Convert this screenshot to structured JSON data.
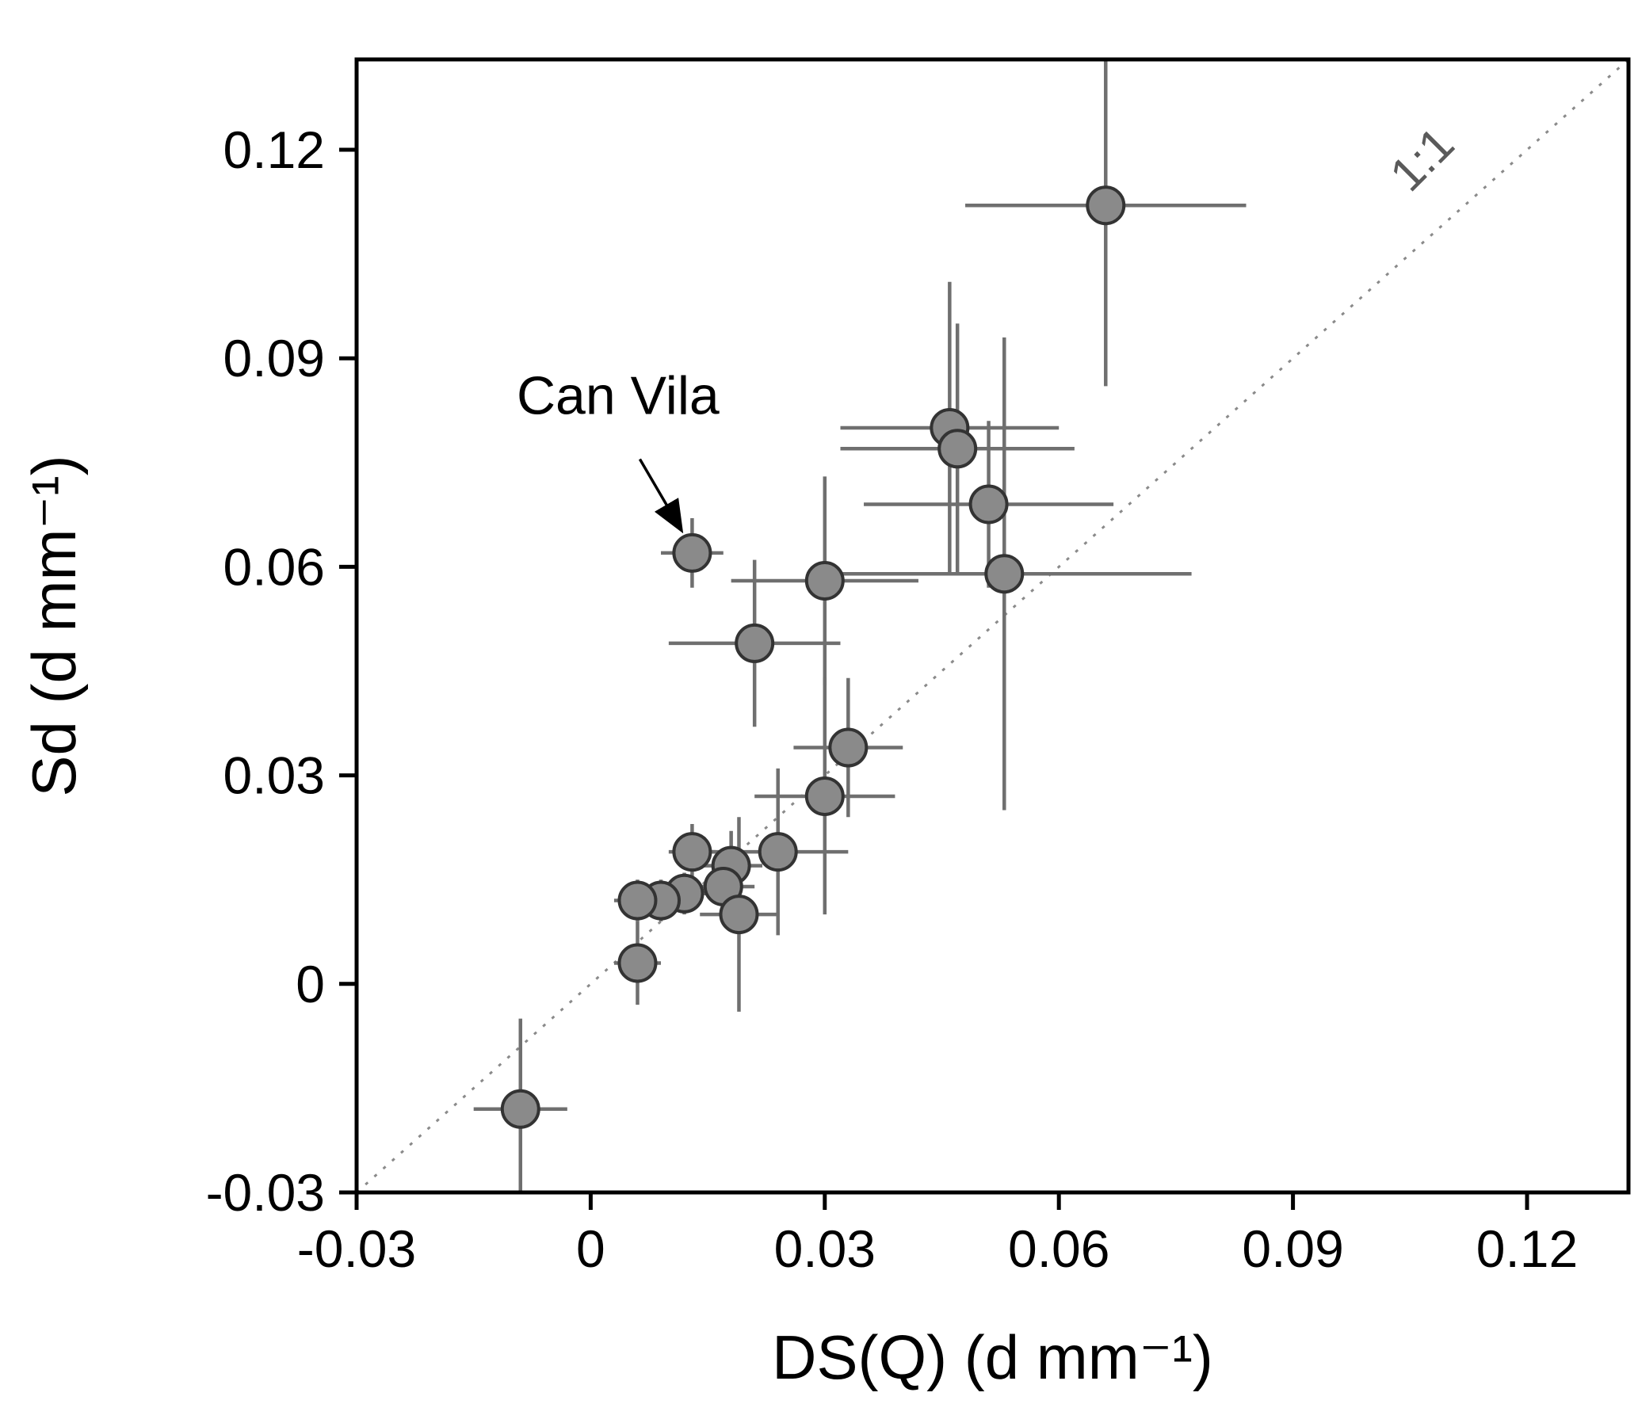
{
  "figure": {
    "description": "Scatter plot comparing Sd versus DS(Q) with 1:1 reference line"
  },
  "chart_data": {
    "type": "scatter",
    "title": "",
    "xlabel": "DS(Q)  (d mm⁻¹)",
    "ylabel": "Sd (d mm⁻¹)",
    "xlim": [
      -0.03,
      0.133
    ],
    "ylim": [
      -0.03,
      0.133
    ],
    "grid": false,
    "legend": "none",
    "xticks": {
      "values": [
        -0.03,
        0,
        0.03,
        0.06,
        0.09,
        0.12
      ],
      "labels": [
        "-0.03",
        "0",
        "0.03",
        "0.06",
        "0.09",
        "0.12"
      ]
    },
    "yticks": {
      "values": [
        -0.03,
        0,
        0.03,
        0.06,
        0.09,
        0.12
      ],
      "labels": [
        "-0.03",
        "0",
        "0.03",
        "0.06",
        "0.09",
        "0.12"
      ]
    },
    "reference_line": {
      "label": "1:1",
      "from": [
        -0.03,
        -0.03
      ],
      "to": [
        0.133,
        0.133
      ],
      "style": "dotted",
      "label_x": 0.108,
      "label_y": 0.117,
      "label_rotation": -45
    },
    "annotation": {
      "text": "Can Vila",
      "text_x": 0.0035,
      "text_y": 0.082,
      "arrow_from_x": 0.0063,
      "arrow_from_y": 0.0755,
      "arrow_to_x": 0.0115,
      "arrow_to_y": 0.0655
    },
    "points": [
      {
        "x": 0.066,
        "y": 0.112,
        "xerr": 0.018,
        "yerr": 0.026
      },
      {
        "x": 0.046,
        "y": 0.08,
        "xerr": 0.014,
        "yerr": 0.021
      },
      {
        "x": 0.047,
        "y": 0.077,
        "xerr": 0.015,
        "yerr": 0.018
      },
      {
        "x": 0.051,
        "y": 0.069,
        "xerr": 0.016,
        "yerr": 0.012
      },
      {
        "x": 0.053,
        "y": 0.059,
        "xerr": 0.024,
        "yerr": 0.034
      },
      {
        "x": 0.03,
        "y": 0.058,
        "xerr": 0.012,
        "yerr": 0.015
      },
      {
        "x": 0.013,
        "y": 0.062,
        "xerr": 0.004,
        "yerr": 0.005
      },
      {
        "x": 0.021,
        "y": 0.049,
        "xerr": 0.011,
        "yerr": 0.012
      },
      {
        "x": 0.033,
        "y": 0.034,
        "xerr": 0.007,
        "yerr": 0.01
      },
      {
        "x": 0.03,
        "y": 0.027,
        "xerr": 0.009,
        "yerr": 0.017
      },
      {
        "x": 0.024,
        "y": 0.019,
        "xerr": 0.009,
        "yerr": 0.012
      },
      {
        "x": 0.013,
        "y": 0.019,
        "xerr": 0.003,
        "yerr": 0.004
      },
      {
        "x": 0.018,
        "y": 0.017,
        "xerr": 0.004,
        "yerr": 0.005
      },
      {
        "x": 0.017,
        "y": 0.014,
        "xerr": 0.004,
        "yerr": 0.004
      },
      {
        "x": 0.012,
        "y": 0.013,
        "xerr": 0.003,
        "yerr": 0.003
      },
      {
        "x": 0.009,
        "y": 0.012,
        "xerr": 0.003,
        "yerr": 0.003
      },
      {
        "x": 0.006,
        "y": 0.012,
        "xerr": 0.003,
        "yerr": 0.003
      },
      {
        "x": 0.019,
        "y": 0.01,
        "xerr": 0.005,
        "yerr": 0.014
      },
      {
        "x": 0.006,
        "y": 0.003,
        "xerr": 0.003,
        "yerr": 0.006
      },
      {
        "x": -0.009,
        "y": -0.018,
        "xerr": 0.006,
        "yerr": 0.013
      }
    ],
    "colors": {
      "marker_fill": "#8a8a8a",
      "marker_stroke": "#333333",
      "error_bar": "#6f6f6f",
      "axis": "#000000",
      "reference_line": "#8a8a8a",
      "annotation": "#000000",
      "one_to_one_label": "#5a5a5a"
    }
  }
}
